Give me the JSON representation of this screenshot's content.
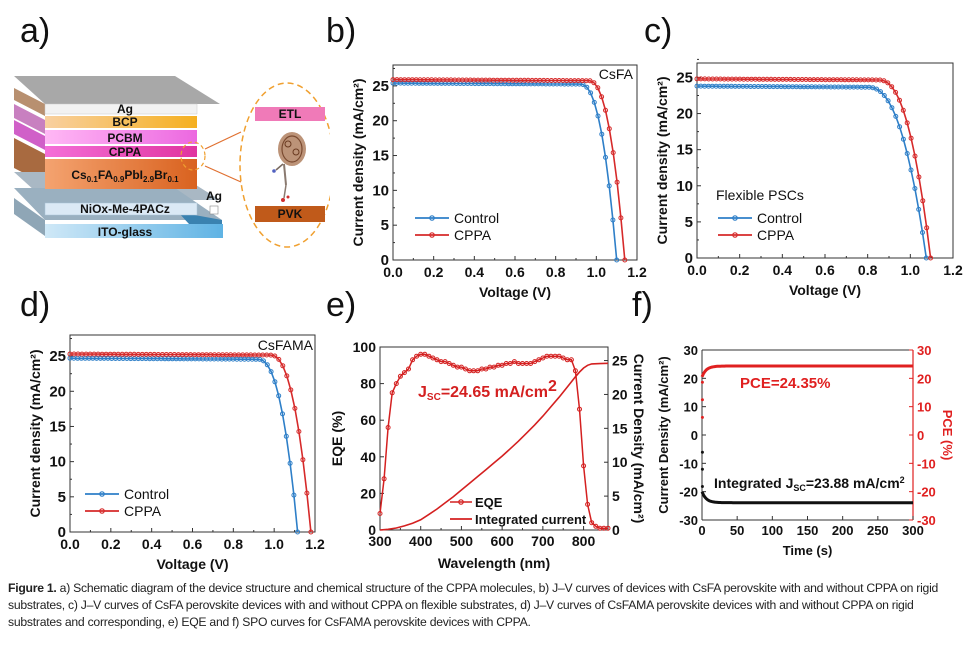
{
  "figure": {
    "panel_letters": [
      "a)",
      "b)",
      "c)",
      "d)",
      "e)",
      "f)"
    ],
    "caption_label": "Figure 1.",
    "caption_text": " a) Schematic diagram of the device structure and chemical structure of the CPPA molecules, b) J–V curves of devices with CsFA perovskite with and without CPPA on rigid substrates, c) J–V curves of CsFA perovskite devices with and without CPPA on flexible substrates, d) J–V curves of CsFAMA perovskite devices with and without CPPA on rigid substrates and corresponding, e) EQE and f) SPO curves for CsFAMA perovskite devices with CPPA."
  },
  "schematic": {
    "layers": [
      {
        "name": "Ag",
        "color": "#f2f2f2"
      },
      {
        "name": "BCP",
        "color": "#f5b54a"
      },
      {
        "name": "PCBM",
        "color": "#f08ae8"
      },
      {
        "name": "CPPA",
        "color": "#e94fc8"
      },
      {
        "name": "Cs0.1FA0.9PbI2.9Br0.1",
        "color": "#e07a3c"
      },
      {
        "name": "NiOx-Me-4PACz",
        "color": "#dbe9f5"
      },
      {
        "name": "ITO-glass",
        "color": "#8ec9ea"
      }
    ],
    "electrode_label": "Ag",
    "inset_top_label": "ETL",
    "inset_bottom_label": "PVK",
    "inset_top_color": "#f07ab8",
    "inset_bottom_color": "#c05a1a",
    "highlight_color": "#f0a030"
  },
  "chart_data": [
    {
      "id": "b",
      "type": "line",
      "title": "",
      "annotation": "CsFA",
      "xlabel": "Voltage (V)",
      "ylabel": "Current density (mA/cm²)",
      "xlim": [
        0,
        1.2
      ],
      "ylim": [
        0,
        28
      ],
      "xticks": [
        0.0,
        0.2,
        0.4,
        0.6,
        0.8,
        1.0,
        1.2
      ],
      "xtick_labels": [
        "0.0",
        "0.2",
        "0.4",
        "0.6",
        "0.8",
        "1.0",
        "1.2"
      ],
      "yticks": [
        0,
        5,
        10,
        15,
        20,
        25
      ],
      "legend": "lower-left",
      "series": [
        {
          "name": "Control",
          "color": "#2e7fc8",
          "jsc": 25.4,
          "voc": 1.1,
          "knee": 0.92
        },
        {
          "name": "CPPA",
          "color": "#d62a2a",
          "jsc": 25.9,
          "voc": 1.14,
          "knee": 0.96
        }
      ]
    },
    {
      "id": "c",
      "type": "line",
      "annotation": "Flexible PSCs",
      "xlabel": "Voltage (V)",
      "ylabel": "Current density (mA/cm²)",
      "xlim": [
        0,
        1.2
      ],
      "ylim": [
        0,
        27
      ],
      "xticks": [
        0.0,
        0.2,
        0.4,
        0.6,
        0.8,
        1.0,
        1.2
      ],
      "xtick_labels": [
        "0.0",
        "0.2",
        "0.4",
        "0.6",
        "0.8",
        "1.0",
        "1.2"
      ],
      "yticks": [
        0,
        5,
        10,
        15,
        20,
        25
      ],
      "legend": "lower-left",
      "series": [
        {
          "name": "Control",
          "color": "#2e7fc8",
          "jsc": 23.8,
          "voc": 1.075,
          "knee": 0.8
        },
        {
          "name": "CPPA",
          "color": "#d62a2a",
          "jsc": 24.8,
          "voc": 1.095,
          "knee": 0.85
        }
      ]
    },
    {
      "id": "d",
      "type": "line",
      "annotation": "CsFAMA",
      "xlabel": "Voltage (V)",
      "ylabel": "Current density (mA/cm²)",
      "xlim": [
        0,
        1.2
      ],
      "ylim": [
        0,
        28
      ],
      "xticks": [
        0.0,
        0.2,
        0.4,
        0.6,
        0.8,
        1.0,
        1.2
      ],
      "xtick_labels": [
        "0.0",
        "0.2",
        "0.4",
        "0.6",
        "0.8",
        "1.0",
        "1.2"
      ],
      "yticks": [
        0,
        5,
        10,
        15,
        20,
        25
      ],
      "legend": "lower-left",
      "series": [
        {
          "name": "Control",
          "color": "#2e7fc8",
          "jsc": 24.7,
          "voc": 1.115,
          "knee": 0.92
        },
        {
          "name": "CPPA",
          "color": "#d62a2a",
          "jsc": 25.3,
          "voc": 1.18,
          "knee": 0.98
        }
      ]
    },
    {
      "id": "e",
      "type": "line",
      "annotation": "J_SC=24.65 mA/cm²",
      "annotation_main": "J",
      "annotation_sub": "SC",
      "annotation_rest": "=24.65 mA/cm",
      "annotation_sup": "2",
      "xlabel": "Wavelength (nm)",
      "ylabel": "EQE (%)",
      "y2label": "Current Density (mA/cm²)",
      "xlim": [
        300,
        860
      ],
      "ylim": [
        0,
        100
      ],
      "y2lim": [
        0,
        27
      ],
      "xticks": [
        300,
        400,
        500,
        600,
        700,
        800
      ],
      "yticks": [
        0,
        20,
        40,
        60,
        80,
        100
      ],
      "y2ticks": [
        0,
        5,
        10,
        15,
        20,
        25
      ],
      "legend": "lower-right",
      "color": "#d42020",
      "series": [
        {
          "name": "EQE",
          "axis": "left",
          "x": [
            300,
            310,
            320,
            330,
            340,
            350,
            360,
            370,
            380,
            390,
            400,
            410,
            420,
            430,
            440,
            450,
            460,
            470,
            480,
            490,
            500,
            510,
            520,
            530,
            540,
            550,
            560,
            570,
            580,
            590,
            600,
            610,
            620,
            630,
            640,
            650,
            660,
            670,
            680,
            690,
            700,
            710,
            720,
            730,
            740,
            750,
            760,
            770,
            780,
            790,
            800,
            810,
            820,
            830,
            840,
            850,
            860
          ],
          "y": [
            9,
            28,
            56,
            75,
            80,
            84,
            86,
            88,
            93,
            95,
            96,
            96,
            95,
            94,
            93,
            92,
            92,
            91,
            90,
            89,
            89,
            88,
            87,
            87,
            87,
            88,
            88,
            89,
            89,
            90,
            90,
            91,
            91,
            92,
            91,
            91,
            91,
            91,
            92,
            93,
            94,
            95,
            95,
            95,
            95,
            94,
            93,
            93,
            87,
            66,
            35,
            14,
            4,
            2,
            1,
            1,
            1
          ]
        },
        {
          "name": "Integrated current",
          "axis": "right",
          "x": [
            300,
            320,
            340,
            360,
            380,
            400,
            420,
            440,
            460,
            480,
            500,
            520,
            540,
            560,
            580,
            600,
            620,
            640,
            660,
            680,
            700,
            720,
            740,
            760,
            780,
            790,
            800,
            810,
            820,
            840,
            860
          ],
          "y": [
            0,
            0.1,
            0.3,
            0.6,
            1.0,
            1.5,
            2.3,
            3.1,
            4.0,
            4.9,
            5.9,
            6.9,
            7.9,
            8.9,
            9.9,
            10.9,
            12.0,
            13.1,
            14.3,
            15.5,
            16.8,
            18.2,
            19.6,
            21.1,
            22.6,
            23.3,
            23.9,
            24.3,
            24.5,
            24.55,
            24.6
          ]
        }
      ]
    },
    {
      "id": "f",
      "type": "scatter",
      "annotation_pce": "PCE=24.35%",
      "annotation_jsc_main": "Integrated J",
      "annotation_jsc_sub": "SC",
      "annotation_jsc_rest": "=23.88 mA/cm",
      "annotation_jsc_sup": "2",
      "xlabel": "Time (s)",
      "ylabel": "Current Density (mA/cm²)",
      "y2label": "PCE (%)",
      "xlim": [
        0,
        300
      ],
      "ylim": [
        -30,
        30
      ],
      "y2lim": [
        -30,
        30
      ],
      "xticks": [
        0,
        50,
        100,
        150,
        200,
        250,
        300
      ],
      "yticks": [
        -30,
        -20,
        -10,
        0,
        10,
        20,
        30
      ],
      "y2ticks": [
        -30,
        -20,
        -10,
        0,
        10,
        20,
        30
      ],
      "y2_color": "#e02020",
      "series": [
        {
          "name": "PCE",
          "axis": "right",
          "color": "#e02020",
          "final": 24.35,
          "start": 20.5
        },
        {
          "name": "Current Density",
          "axis": "left",
          "color": "#111111",
          "final": -23.88,
          "start": -20.0
        }
      ]
    }
  ]
}
